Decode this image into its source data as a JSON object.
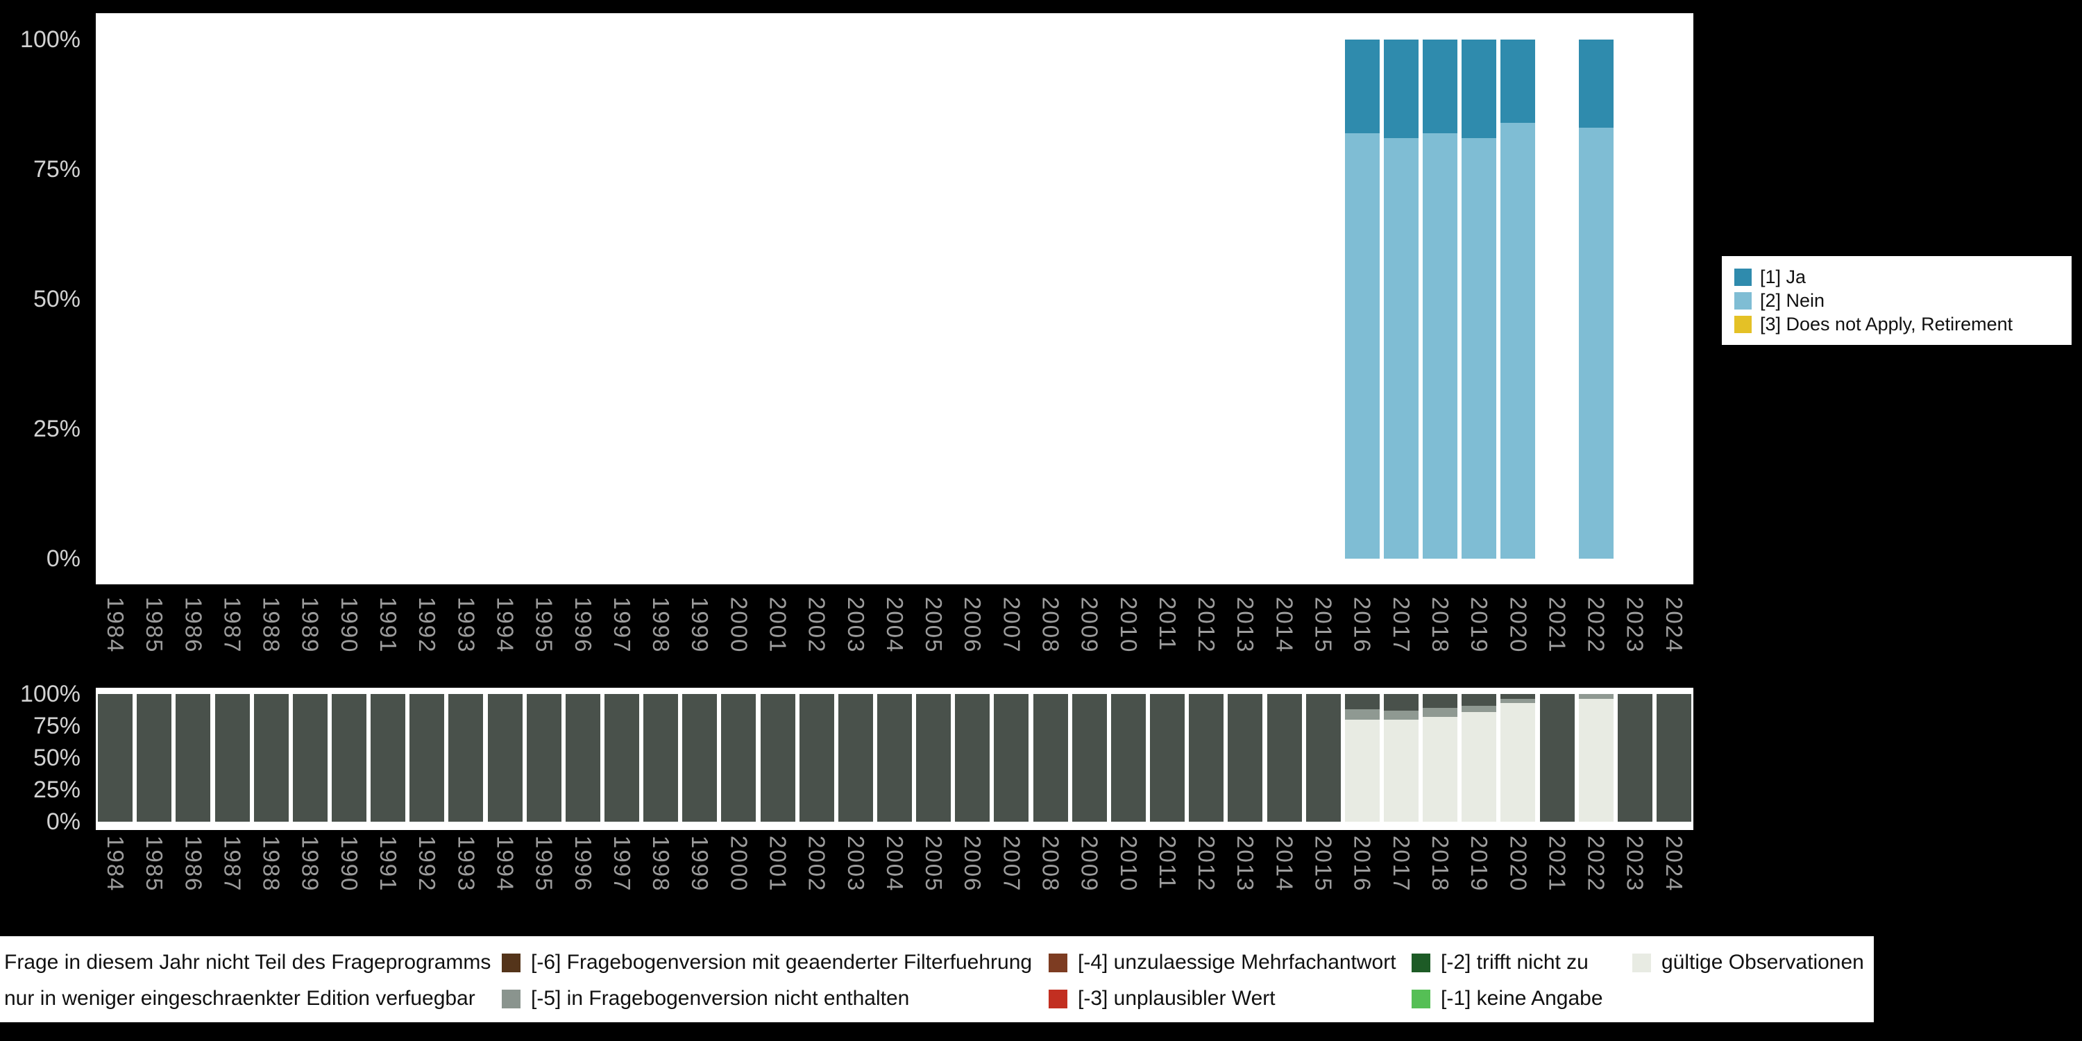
{
  "page": {
    "background_color": "#000000",
    "panel_background_color": "#ffffff"
  },
  "chart_data": [
    {
      "id": "responses-by-year",
      "type": "bar",
      "stacked": true,
      "unit": "percent",
      "title": "",
      "xlabel": "",
      "ylabel": "",
      "ylim": [
        0,
        100
      ],
      "grid": false,
      "legend_position": "right",
      "ytick_labels": [
        "100%",
        "75%",
        "50%",
        "25%",
        "0%"
      ],
      "categories": [
        "1984",
        "1985",
        "1986",
        "1987",
        "1988",
        "1989",
        "1990",
        "1991",
        "1992",
        "1993",
        "1994",
        "1995",
        "1996",
        "1997",
        "1998",
        "1999",
        "2000",
        "2001",
        "2002",
        "2003",
        "2004",
        "2005",
        "2006",
        "2007",
        "2008",
        "2009",
        "2010",
        "2011",
        "2012",
        "2013",
        "2014",
        "2015",
        "2016",
        "2017",
        "2018",
        "2019",
        "2020",
        "2021",
        "2022",
        "2023",
        "2024"
      ],
      "series": [
        {
          "key": "ja",
          "name": "[1] Ja",
          "color": "#2f8bad",
          "values": {
            "2016": 18,
            "2017": 19,
            "2018": 18,
            "2019": 19,
            "2020": 16,
            "2022": 17
          }
        },
        {
          "key": "nein",
          "name": "[2] Nein",
          "color": "#7fbdd4",
          "values": {
            "2016": 82,
            "2017": 81,
            "2018": 82,
            "2019": 81,
            "2020": 84,
            "2022": 83
          }
        },
        {
          "key": "does-not-apply",
          "name": "[3] Does not Apply, Retirement",
          "color": "#e4c126",
          "values": {}
        }
      ]
    },
    {
      "id": "missings-by-year",
      "type": "bar",
      "stacked": true,
      "unit": "percent",
      "title": "",
      "xlabel": "",
      "ylabel": "",
      "ylim": [
        0,
        100
      ],
      "grid": false,
      "legend_position": "bottom",
      "ytick_labels": [
        "100%",
        "75%",
        "50%",
        "25%",
        "0%"
      ],
      "categories": [
        "1984",
        "1985",
        "1986",
        "1987",
        "1988",
        "1989",
        "1990",
        "1991",
        "1992",
        "1993",
        "1994",
        "1995",
        "1996",
        "1997",
        "1998",
        "1999",
        "2000",
        "2001",
        "2002",
        "2003",
        "2004",
        "2005",
        "2006",
        "2007",
        "2008",
        "2009",
        "2010",
        "2011",
        "2012",
        "2013",
        "2014",
        "2015",
        "2016",
        "2017",
        "2018",
        "2019",
        "2020",
        "2021",
        "2022",
        "2023",
        "2024"
      ],
      "series": [
        {
          "key": "frage-nicht-teil",
          "name": "Frage in diesem Jahr nicht Teil des Frageprogramms",
          "color": "#49514b",
          "values": {
            "1984": 100,
            "1985": 100,
            "1986": 100,
            "1987": 100,
            "1988": 100,
            "1989": 100,
            "1990": 100,
            "1991": 100,
            "1992": 100,
            "1993": 100,
            "1994": 100,
            "1995": 100,
            "1996": 100,
            "1997": 100,
            "1998": 100,
            "1999": 100,
            "2000": 100,
            "2001": 100,
            "2002": 100,
            "2003": 100,
            "2004": 100,
            "2005": 100,
            "2006": 100,
            "2007": 100,
            "2008": 100,
            "2009": 100,
            "2010": 100,
            "2011": 100,
            "2012": 100,
            "2013": 100,
            "2014": 100,
            "2015": 100,
            "2016": 12,
            "2017": 13,
            "2018": 11,
            "2019": 9,
            "2020": 4,
            "2021": 100,
            "2023": 100,
            "2024": 100
          }
        },
        {
          "key": "restricted-edition",
          "name": "nur in weniger eingeschraenkter Edition verfuegbar",
          "color": "#8f9992",
          "values": {
            "2016": 8,
            "2017": 7,
            "2018": 7,
            "2019": 5,
            "2020": 3,
            "2022": 4
          }
        },
        {
          "key": "minus6",
          "name": "[-6] Fragebogenversion mit geaenderter Filterfuehrung",
          "color": "#54341a",
          "values": {}
        },
        {
          "key": "minus5",
          "name": "[-5] in Fragebogenversion nicht enthalten",
          "color": "#8a948e",
          "values": {}
        },
        {
          "key": "minus4",
          "name": "[-4] unzulaessige Mehrfachantwort",
          "color": "#7d3c22",
          "values": {}
        },
        {
          "key": "minus3",
          "name": "[-3] unplausibler Wert",
          "color": "#c22f21",
          "values": {}
        },
        {
          "key": "minus2",
          "name": "[-2] trifft nicht zu",
          "color": "#1d5b26",
          "values": {}
        },
        {
          "key": "minus1",
          "name": "[-1] keine Angabe",
          "color": "#55bf55",
          "values": {}
        },
        {
          "key": "valid",
          "name": "gültige Observationen",
          "color": "#e8ebe3",
          "values": {
            "2016": 80,
            "2017": 80,
            "2018": 82,
            "2019": 86,
            "2020": 93,
            "2022": 96
          }
        }
      ]
    }
  ]
}
